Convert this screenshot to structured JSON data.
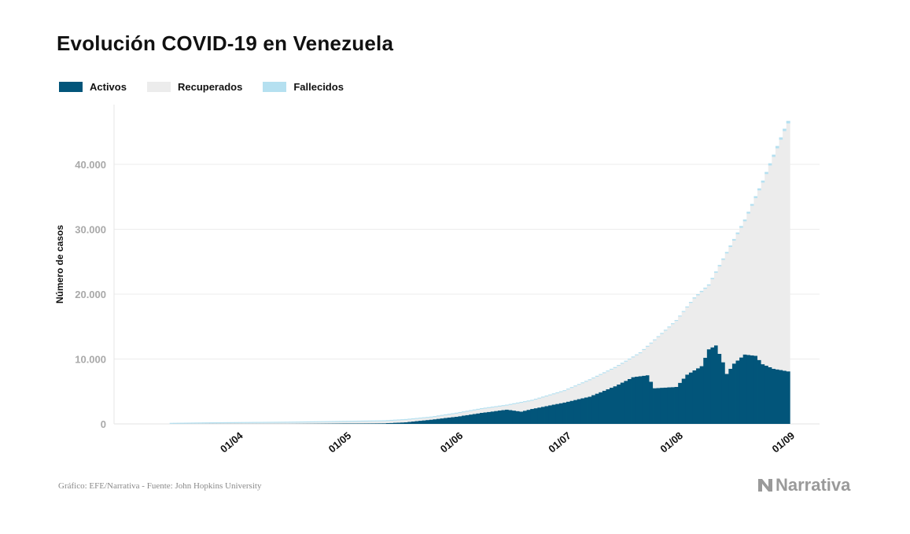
{
  "title": "Evolución COVID-19 en Venezuela",
  "legend": [
    {
      "label": "Activos",
      "color": "#02557a"
    },
    {
      "label": "Recuperados",
      "color": "#ececec"
    },
    {
      "label": "Fallecidos",
      "color": "#b5e0f0"
    }
  ],
  "footer": "Gráfico: EFE/Narrativa - Fuente: John Hopkins University",
  "brand": "Narrativa",
  "chart_data": {
    "type": "bar",
    "stacked": true,
    "ylabel": "Número de casos",
    "ylim": [
      0,
      48000
    ],
    "y_ticks": [
      {
        "value": 0,
        "label": "0"
      },
      {
        "value": 10000,
        "label": "10.000"
      },
      {
        "value": 20000,
        "label": "20.000"
      },
      {
        "value": 30000,
        "label": "30.000"
      },
      {
        "value": 40000,
        "label": "40.000"
      }
    ],
    "x_start": "2020-03-14",
    "x_end": "2020-09-01",
    "x_ticks": [
      {
        "date": "2020-04-01",
        "label": "01/04"
      },
      {
        "date": "2020-05-01",
        "label": "01/05"
      },
      {
        "date": "2020-06-01",
        "label": "01/06"
      },
      {
        "date": "2020-07-01",
        "label": "01/07"
      },
      {
        "date": "2020-08-01",
        "label": "01/08"
      },
      {
        "date": "2020-09-01",
        "label": "01/09"
      }
    ],
    "grid": true,
    "legend_position": "top-left",
    "anchors_total": [
      [
        "2020-03-14",
        10
      ],
      [
        "2020-03-25",
        100
      ],
      [
        "2020-04-15",
        200
      ],
      [
        "2020-05-01",
        330
      ],
      [
        "2020-05-12",
        420
      ],
      [
        "2020-05-18",
        620
      ],
      [
        "2020-05-25",
        1000
      ],
      [
        "2020-06-01",
        1600
      ],
      [
        "2020-06-08",
        2300
      ],
      [
        "2020-06-15",
        2850
      ],
      [
        "2020-06-22",
        3600
      ],
      [
        "2020-07-01",
        5100
      ],
      [
        "2020-07-08",
        6800
      ],
      [
        "2020-07-15",
        8700
      ],
      [
        "2020-07-22",
        11000
      ],
      [
        "2020-07-29",
        14500
      ],
      [
        "2020-08-01",
        16000
      ],
      [
        "2020-08-06",
        19500
      ],
      [
        "2020-08-10",
        21500
      ],
      [
        "2020-08-15",
        26500
      ],
      [
        "2020-08-20",
        31500
      ],
      [
        "2020-08-25",
        37500
      ],
      [
        "2020-08-31",
        45500
      ],
      [
        "2020-09-01",
        46700
      ]
    ],
    "anchors_active": [
      [
        "2020-03-14",
        5
      ],
      [
        "2020-03-25",
        30
      ],
      [
        "2020-04-15",
        30
      ],
      [
        "2020-05-01",
        60
      ],
      [
        "2020-05-12",
        100
      ],
      [
        "2020-05-18",
        250
      ],
      [
        "2020-05-25",
        650
      ],
      [
        "2020-06-01",
        1100
      ],
      [
        "2020-06-08",
        1700
      ],
      [
        "2020-06-15",
        2200
      ],
      [
        "2020-06-19",
        1900
      ],
      [
        "2020-06-22",
        2300
      ],
      [
        "2020-07-01",
        3300
      ],
      [
        "2020-07-08",
        4200
      ],
      [
        "2020-07-15",
        5800
      ],
      [
        "2020-07-20",
        7200
      ],
      [
        "2020-07-24",
        7500
      ],
      [
        "2020-07-26",
        5500
      ],
      [
        "2020-07-29",
        5600
      ],
      [
        "2020-08-01",
        5700
      ],
      [
        "2020-08-04",
        7600
      ],
      [
        "2020-08-08",
        8900
      ],
      [
        "2020-08-10",
        11500
      ],
      [
        "2020-08-12",
        12100
      ],
      [
        "2020-08-14",
        9500
      ],
      [
        "2020-08-15",
        7700
      ],
      [
        "2020-08-17",
        9300
      ],
      [
        "2020-08-20",
        10700
      ],
      [
        "2020-08-23",
        10500
      ],
      [
        "2020-08-25",
        9200
      ],
      [
        "2020-08-28",
        8500
      ],
      [
        "2020-09-01",
        8100
      ]
    ],
    "anchors_deaths": [
      [
        "2020-03-14",
        0
      ],
      [
        "2020-04-15",
        10
      ],
      [
        "2020-05-15",
        15
      ],
      [
        "2020-06-15",
        25
      ],
      [
        "2020-07-01",
        45
      ],
      [
        "2020-07-15",
        80
      ],
      [
        "2020-08-01",
        140
      ],
      [
        "2020-08-15",
        230
      ],
      [
        "2020-09-01",
        385
      ]
    ]
  }
}
